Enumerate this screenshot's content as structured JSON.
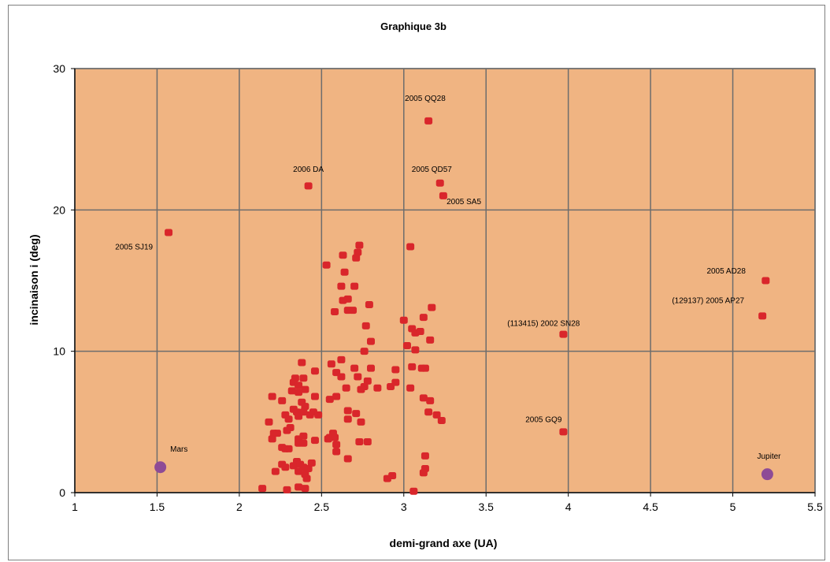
{
  "chart_data": {
    "type": "scatter",
    "title": "Graphique 3b",
    "xlabel": "demi-grand axe (UA)",
    "ylabel": "incinaison i (deg)",
    "xlim": [
      1,
      5.5
    ],
    "ylim": [
      0,
      30
    ],
    "x_ticks": [
      "1",
      "1.5",
      "2",
      "2.5",
      "3",
      "3.5",
      "4",
      "4.5",
      "5",
      "5.5"
    ],
    "y_ticks": [
      "0",
      "10",
      "20",
      "30"
    ],
    "grid": true,
    "legend": "none",
    "colors": {
      "plot_background": "#f0b482",
      "grid": "#6d6d6d",
      "asteroid": "#d9262b",
      "planet": "#8e4b96"
    },
    "series": [
      {
        "marker": "square",
        "color": "#d9262b",
        "points": [
          [
            1.57,
            18.4
          ],
          [
            2.42,
            21.7
          ],
          [
            3.15,
            26.3
          ],
          [
            3.22,
            21.9
          ],
          [
            3.24,
            21.0
          ],
          [
            3.04,
            17.4
          ],
          [
            3.97,
            11.2
          ],
          [
            3.97,
            4.3
          ],
          [
            5.2,
            15.0
          ],
          [
            5.18,
            12.5
          ],
          [
            2.53,
            16.1
          ],
          [
            2.63,
            16.8
          ],
          [
            2.64,
            15.6
          ],
          [
            2.62,
            14.6
          ],
          [
            2.66,
            13.7
          ],
          [
            2.63,
            13.6
          ],
          [
            2.66,
            12.9
          ],
          [
            2.69,
            12.9
          ],
          [
            2.58,
            12.8
          ],
          [
            2.7,
            14.6
          ],
          [
            2.73,
            17.5
          ],
          [
            2.72,
            17.0
          ],
          [
            2.71,
            16.6
          ],
          [
            2.79,
            13.3
          ],
          [
            2.77,
            11.8
          ],
          [
            2.8,
            10.7
          ],
          [
            2.76,
            10.0
          ],
          [
            2.62,
            9.4
          ],
          [
            2.56,
            9.1
          ],
          [
            2.59,
            8.5
          ],
          [
            2.62,
            8.2
          ],
          [
            2.7,
            8.8
          ],
          [
            2.8,
            8.8
          ],
          [
            2.72,
            8.2
          ],
          [
            2.78,
            7.9
          ],
          [
            2.76,
            7.5
          ],
          [
            2.74,
            7.3
          ],
          [
            2.65,
            7.4
          ],
          [
            2.59,
            6.8
          ],
          [
            2.55,
            6.6
          ],
          [
            2.46,
            6.8
          ],
          [
            2.46,
            8.6
          ],
          [
            2.38,
            9.2
          ],
          [
            2.39,
            8.1
          ],
          [
            2.34,
            8.1
          ],
          [
            2.33,
            7.8
          ],
          [
            2.36,
            7.6
          ],
          [
            2.4,
            7.3
          ],
          [
            2.36,
            7.1
          ],
          [
            2.32,
            7.2
          ],
          [
            2.2,
            6.8
          ],
          [
            2.26,
            6.5
          ],
          [
            2.38,
            6.4
          ],
          [
            2.4,
            6.1
          ],
          [
            2.33,
            5.9
          ],
          [
            2.35,
            5.7
          ],
          [
            2.39,
            5.7
          ],
          [
            2.36,
            5.4
          ],
          [
            2.28,
            5.5
          ],
          [
            2.3,
            5.2
          ],
          [
            2.43,
            5.5
          ],
          [
            2.45,
            5.7
          ],
          [
            2.48,
            5.5
          ],
          [
            2.18,
            5.0
          ],
          [
            2.31,
            4.6
          ],
          [
            2.29,
            4.4
          ],
          [
            2.21,
            4.2
          ],
          [
            2.23,
            4.2
          ],
          [
            2.2,
            3.8
          ],
          [
            2.36,
            3.8
          ],
          [
            2.39,
            4.0
          ],
          [
            2.36,
            3.5
          ],
          [
            2.26,
            3.2
          ],
          [
            2.28,
            3.1
          ],
          [
            2.3,
            3.1
          ],
          [
            2.39,
            3.5
          ],
          [
            2.46,
            3.7
          ],
          [
            2.54,
            3.8
          ],
          [
            2.55,
            3.9
          ],
          [
            2.57,
            4.2
          ],
          [
            2.58,
            3.9
          ],
          [
            2.59,
            3.4
          ],
          [
            2.59,
            2.9
          ],
          [
            2.66,
            2.4
          ],
          [
            2.26,
            2.0
          ],
          [
            2.28,
            1.8
          ],
          [
            2.33,
            1.9
          ],
          [
            2.35,
            2.2
          ],
          [
            2.37,
            2.0
          ],
          [
            2.39,
            1.8
          ],
          [
            2.41,
            1.7
          ],
          [
            2.36,
            1.5
          ],
          [
            2.4,
            1.3
          ],
          [
            2.42,
            1.7
          ],
          [
            2.44,
            2.1
          ],
          [
            2.41,
            1.0
          ],
          [
            2.22,
            1.5
          ],
          [
            2.36,
            0.4
          ],
          [
            2.4,
            0.3
          ],
          [
            2.14,
            0.3
          ],
          [
            2.29,
            0.2
          ],
          [
            2.66,
            5.2
          ],
          [
            2.66,
            5.8
          ],
          [
            2.71,
            5.6
          ],
          [
            2.74,
            5.0
          ],
          [
            2.73,
            3.6
          ],
          [
            2.78,
            3.6
          ],
          [
            2.84,
            7.4
          ],
          [
            2.92,
            7.5
          ],
          [
            2.95,
            7.8
          ],
          [
            2.95,
            8.7
          ],
          [
            3.0,
            12.2
          ],
          [
            3.02,
            10.4
          ],
          [
            3.05,
            11.6
          ],
          [
            3.07,
            11.3
          ],
          [
            3.07,
            10.1
          ],
          [
            3.1,
            11.4
          ],
          [
            3.12,
            12.4
          ],
          [
            3.16,
            10.8
          ],
          [
            3.17,
            13.1
          ],
          [
            3.05,
            8.9
          ],
          [
            3.11,
            8.8
          ],
          [
            3.13,
            8.8
          ],
          [
            3.04,
            7.4
          ],
          [
            3.12,
            6.7
          ],
          [
            3.16,
            6.5
          ],
          [
            3.15,
            5.7
          ],
          [
            3.2,
            5.5
          ],
          [
            3.23,
            5.1
          ],
          [
            3.13,
            2.6
          ],
          [
            3.13,
            1.7
          ],
          [
            3.12,
            1.4
          ],
          [
            2.9,
            1.0
          ],
          [
            2.93,
            1.2
          ],
          [
            3.06,
            0.1
          ]
        ]
      },
      {
        "marker": "circle",
        "color": "#8e4b96",
        "points": [
          [
            1.52,
            1.8
          ],
          [
            5.21,
            1.3
          ]
        ]
      }
    ],
    "annotations": [
      {
        "text": "2005 QQ28",
        "x": 3.13,
        "y": 27.7,
        "anchor": "middle"
      },
      {
        "text": "2006 DA",
        "x": 2.42,
        "y": 22.7,
        "anchor": "middle"
      },
      {
        "text": "2005 QD57",
        "x": 3.17,
        "y": 22.7,
        "anchor": "middle"
      },
      {
        "text": "2005 SA5",
        "x": 3.26,
        "y": 20.4,
        "anchor": "start"
      },
      {
        "text": "2005 SJ19",
        "x": 1.36,
        "y": 17.2,
        "anchor": "middle"
      },
      {
        "text": "2005 AD28",
        "x": 4.96,
        "y": 15.5,
        "anchor": "middle"
      },
      {
        "text": "(129137) 2005 AP27",
        "x": 4.85,
        "y": 13.4,
        "anchor": "middle"
      },
      {
        "text": "(113415) 2002 SN28",
        "x": 3.85,
        "y": 11.8,
        "anchor": "middle"
      },
      {
        "text": "2005 GQ9",
        "x": 3.85,
        "y": 5.0,
        "anchor": "middle"
      },
      {
        "text": "Mars",
        "x": 1.58,
        "y": 2.9,
        "anchor": "start"
      },
      {
        "text": "Jupiter",
        "x": 5.22,
        "y": 2.4,
        "anchor": "middle"
      }
    ]
  }
}
